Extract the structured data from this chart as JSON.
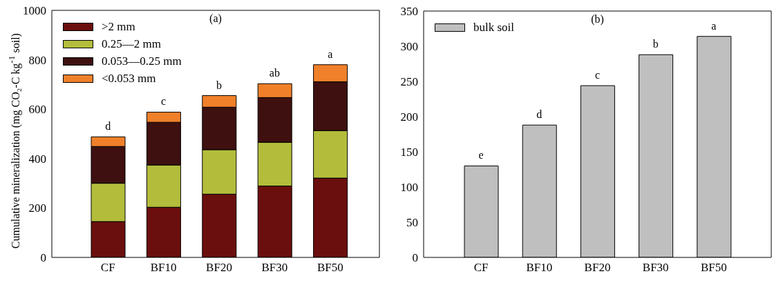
{
  "chart_data": [
    {
      "type": "bar",
      "title": "(a)",
      "ylabel": "Cumulative mineralization (mg CO₂-C kg$^{-1}$ soil)",
      "categories": [
        "CF",
        "BF10",
        "BF20",
        "BF30",
        "BF50"
      ],
      "stacked": true,
      "series": [
        {
          "name": ">2 mm",
          "color": "#6b0e0e",
          "values": [
            145,
            203,
            256,
            289,
            321
          ]
        },
        {
          "name": "0.25—2 mm",
          "color": "#b3bd3b",
          "values": [
            155,
            171,
            180,
            177,
            192
          ]
        },
        {
          "name": "0.053—0.25 mm",
          "color": "#3e1010",
          "values": [
            149,
            173,
            172,
            181,
            198
          ]
        },
        {
          "name": "<0.053 mm",
          "color": "#f0802a",
          "values": [
            39,
            41,
            47,
            56,
            69
          ]
        }
      ],
      "ylim": [
        0,
        1000
      ],
      "yticks": [
        0,
        200,
        400,
        600,
        800,
        1000
      ],
      "legend": "top left",
      "annotations": [
        {
          "text": "d",
          "x": "CF",
          "y": 488
        },
        {
          "text": "c",
          "x": "BF10",
          "y": 588
        },
        {
          "text": "b",
          "x": "BF20",
          "y": 655
        },
        {
          "text": "ab",
          "x": "BF30",
          "y": 703
        },
        {
          "text": "a",
          "x": "BF50",
          "y": 780
        }
      ]
    },
    {
      "type": "bar",
      "title": "(b)",
      "categories": [
        "CF",
        "BF10",
        "BF20",
        "BF30",
        "BF50"
      ],
      "series": [
        {
          "name": "bulk soil",
          "color": "#bfbfbf",
          "values": [
            130,
            188,
            244,
            288,
            314
          ]
        }
      ],
      "ylim": [
        0,
        350
      ],
      "yticks": [
        0,
        50,
        100,
        150,
        200,
        250,
        300,
        350
      ],
      "legend": "top left",
      "annotations": [
        {
          "text": "e",
          "x": "CF",
          "y": 130
        },
        {
          "text": "d",
          "x": "BF10",
          "y": 188
        },
        {
          "text": "c",
          "x": "BF20",
          "y": 244
        },
        {
          "text": "b",
          "x": "BF30",
          "y": 288
        },
        {
          "text": "a",
          "x": "BF50",
          "y": 314
        }
      ]
    }
  ]
}
